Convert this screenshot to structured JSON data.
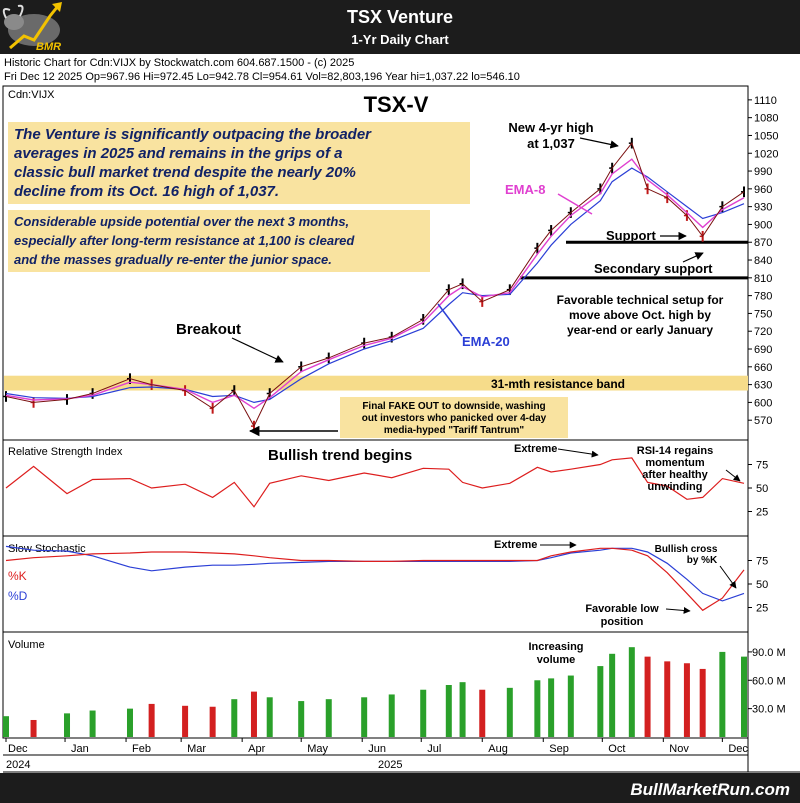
{
  "header": {
    "title": "TSX Venture",
    "subtitle": "1-Yr Daily Chart",
    "logo_text": "BMR"
  },
  "info": {
    "line1": "Historic Chart for Cdn:VIJX by Stockwatch.com 604.687.1500 - (c) 2025",
    "line2": "Fri Dec 12 2025   Op=967.96   Hi=972.45   Lo=942.78   Cl=954.61   Vol=82,803,196   Year hi=1,037.22   lo=546.10"
  },
  "footer": {
    "brand": "BullMarketRun.com"
  },
  "colors": {
    "header_bg": "#1c1c1c",
    "note_bg": "#f9e3a0",
    "band": "#f6dc8a",
    "ema8": "#e040d0",
    "ema20": "#2b3fd6",
    "rsi": "#dd1e1e",
    "stoch_k": "#dd1e1e",
    "stoch_d": "#2b3fd6",
    "up_bar": "#2aa02a",
    "down_bar": "#d32020"
  },
  "chart_data": [
    {
      "id": "price",
      "type": "line",
      "symbol": "Cdn:VIJX",
      "title": "TSX-V",
      "x": [
        "2024-12-02",
        "2024-12-16",
        "2025-01-02",
        "2025-01-15",
        "2025-02-03",
        "2025-02-14",
        "2025-03-03",
        "2025-03-17",
        "2025-03-28",
        "2025-04-07",
        "2025-04-15",
        "2025-05-01",
        "2025-05-15",
        "2025-06-02",
        "2025-06-16",
        "2025-07-02",
        "2025-07-15",
        "2025-07-22",
        "2025-08-01",
        "2025-08-15",
        "2025-08-29",
        "2025-09-05",
        "2025-09-15",
        "2025-09-30",
        "2025-10-06",
        "2025-10-16",
        "2025-10-24",
        "2025-11-03",
        "2025-11-13",
        "2025-11-21",
        "2025-12-01",
        "2025-12-12"
      ],
      "series": [
        {
          "values": [
            610,
            600,
            605,
            615,
            640,
            630,
            620,
            590,
            620,
            560,
            615,
            660,
            675,
            700,
            710,
            740,
            790,
            800,
            770,
            790,
            860,
            890,
            920,
            960,
            995,
            1037,
            960,
            945,
            915,
            880,
            930,
            955
          ]
        },
        {
          "name": "EMA-8",
          "values": [
            612,
            604,
            606,
            612,
            634,
            630,
            622,
            600,
            612,
            590,
            608,
            652,
            672,
            696,
            708,
            735,
            780,
            795,
            778,
            785,
            850,
            880,
            915,
            952,
            985,
            1010,
            975,
            950,
            920,
            895,
            925,
            945
          ]
        },
        {
          "name": "EMA-20",
          "values": [
            615,
            608,
            607,
            610,
            625,
            626,
            622,
            610,
            612,
            600,
            605,
            640,
            665,
            690,
            704,
            725,
            765,
            785,
            780,
            782,
            835,
            865,
            900,
            940,
            972,
            995,
            980,
            955,
            930,
            910,
            920,
            935
          ]
        }
      ],
      "ylim": [
        540,
        1130
      ],
      "y_ticks": [
        1110,
        1080,
        1050,
        1020,
        990,
        960,
        930,
        900,
        870,
        840,
        810,
        780,
        750,
        720,
        690,
        660,
        630,
        600,
        570
      ],
      "resistance_band": [
        620,
        645
      ],
      "support": 870,
      "secondary_support": 810
    },
    {
      "id": "rsi",
      "type": "line",
      "title": "Relative Strength Index",
      "x": [
        "2024-12-02",
        "2024-12-16",
        "2025-01-02",
        "2025-01-15",
        "2025-02-03",
        "2025-02-14",
        "2025-03-03",
        "2025-03-17",
        "2025-03-28",
        "2025-04-07",
        "2025-04-15",
        "2025-05-01",
        "2025-05-15",
        "2025-06-02",
        "2025-06-16",
        "2025-07-02",
        "2025-07-15",
        "2025-07-22",
        "2025-08-01",
        "2025-08-15",
        "2025-08-29",
        "2025-09-05",
        "2025-09-15",
        "2025-09-30",
        "2025-10-06",
        "2025-10-16",
        "2025-10-24",
        "2025-11-03",
        "2025-11-13",
        "2025-11-21",
        "2025-12-01",
        "2025-12-12"
      ],
      "values": [
        50,
        73,
        44,
        59,
        60,
        50,
        54,
        40,
        56,
        30,
        55,
        63,
        58,
        66,
        61,
        71,
        70,
        56,
        50,
        55,
        72,
        67,
        70,
        75,
        80,
        82,
        56,
        52,
        38,
        40,
        60,
        55
      ],
      "ylim": [
        0,
        100
      ],
      "y_ticks": [
        75,
        50,
        25
      ]
    },
    {
      "id": "stochastic",
      "type": "line",
      "title": "Slow Stochastic",
      "x": [
        "2024-12-02",
        "2024-12-16",
        "2025-01-02",
        "2025-01-15",
        "2025-02-03",
        "2025-02-14",
        "2025-03-03",
        "2025-03-17",
        "2025-03-28",
        "2025-04-07",
        "2025-04-15",
        "2025-05-01",
        "2025-05-15",
        "2025-06-02",
        "2025-06-16",
        "2025-07-02",
        "2025-07-15",
        "2025-07-22",
        "2025-08-01",
        "2025-08-15",
        "2025-08-29",
        "2025-09-05",
        "2025-09-15",
        "2025-09-30",
        "2025-10-06",
        "2025-10-16",
        "2025-10-24",
        "2025-11-03",
        "2025-11-13",
        "2025-11-21",
        "2025-12-01",
        "2025-12-12"
      ],
      "series": [
        {
          "name": "%K",
          "values": [
            75,
            78,
            80,
            82,
            83,
            84,
            84,
            83,
            82,
            80,
            78,
            75,
            75,
            74,
            74,
            75,
            75,
            75,
            75,
            75,
            75,
            80,
            84,
            88,
            88,
            86,
            80,
            62,
            40,
            22,
            35,
            65
          ]
        },
        {
          "name": "%D",
          "values": [
            90,
            86,
            85,
            80,
            68,
            64,
            68,
            70,
            70,
            71,
            72,
            73,
            74,
            74,
            74,
            74,
            74,
            74,
            74,
            74,
            75,
            78,
            83,
            86,
            88,
            88,
            84,
            72,
            55,
            40,
            32,
            40
          ]
        }
      ],
      "ylim": [
        0,
        100
      ],
      "y_ticks": [
        75,
        50,
        25
      ]
    },
    {
      "id": "volume",
      "type": "bar",
      "title": "Volume",
      "x": [
        "2024-12-02",
        "2024-12-16",
        "2025-01-02",
        "2025-01-15",
        "2025-02-03",
        "2025-02-14",
        "2025-03-03",
        "2025-03-17",
        "2025-03-28",
        "2025-04-07",
        "2025-04-15",
        "2025-05-01",
        "2025-05-15",
        "2025-06-02",
        "2025-06-16",
        "2025-07-02",
        "2025-07-15",
        "2025-07-22",
        "2025-08-01",
        "2025-08-15",
        "2025-08-29",
        "2025-09-05",
        "2025-09-15",
        "2025-09-30",
        "2025-10-06",
        "2025-10-16",
        "2025-10-24",
        "2025-11-03",
        "2025-11-13",
        "2025-11-21",
        "2025-12-01",
        "2025-12-12"
      ],
      "values_millions": [
        22,
        18,
        25,
        28,
        30,
        35,
        33,
        32,
        40,
        48,
        42,
        38,
        40,
        42,
        45,
        50,
        55,
        58,
        50,
        52,
        60,
        62,
        65,
        75,
        88,
        95,
        85,
        80,
        78,
        72,
        90,
        85
      ],
      "ylim": [
        0,
        110
      ],
      "y_ticks": [
        "90.0 M",
        "60.0 M",
        "30.0 M"
      ]
    }
  ],
  "axis": {
    "months": [
      "Dec",
      "Jan",
      "Feb",
      "Mar",
      "Apr",
      "May",
      "Jun",
      "Jul",
      "Aug",
      "Sep",
      "Oct",
      "Nov",
      "Dec"
    ],
    "years": [
      "2024",
      "2025"
    ]
  },
  "panels": {
    "rsi_title": "Relative Strength Index",
    "stoch_title": "Slow Stochastic",
    "volume_title": "Volume",
    "k_label": "%K",
    "d_label": "%D"
  },
  "notes": {
    "note1": [
      "The Venture is significantly outpacing the broader",
      "averages in 2025 and remains in the grips of a",
      "classic bull market trend despite the nearly 20%",
      "decline from its Oct. 16 high of 1,037."
    ],
    "note2": [
      "Considerable upside potential over the next 3 months,",
      "especially after long-term resistance at 1,100 is cleared",
      "and the masses gradually re-enter the junior space."
    ],
    "fakeout": [
      "Final FAKE OUT to downside, washing",
      "out investors who panicked over 4-day",
      "media-hyped \"Tariff Tantrum\""
    ],
    "setup": [
      "Favorable technical setup for",
      "move above Oct. high by",
      "year-end or early January"
    ]
  },
  "annotations": {
    "new_high_l1": "New 4-yr high",
    "new_high_l2": "at 1,037",
    "ema8": "EMA-8",
    "ema20": "EMA-20",
    "support": "Support",
    "secondary_support": "Secondary support",
    "breakout": "Breakout",
    "resistance": "31-mth resistance band",
    "bullish_trend": "Bullish trend begins",
    "rsi_extreme": "Extreme",
    "rsi_note_l1": "RSI-14 regains",
    "rsi_note_l2": "momentum",
    "rsi_note_l3": "after healthy",
    "rsi_note_l4": "unwinding",
    "stoch_extreme": "Extreme",
    "bull_cross_l1": "Bullish cross",
    "bull_cross_l2": "by %K",
    "low_pos_l1": "Favorable low",
    "low_pos_l2": "position",
    "vol_l1": "Increasing",
    "vol_l2": "volume"
  }
}
